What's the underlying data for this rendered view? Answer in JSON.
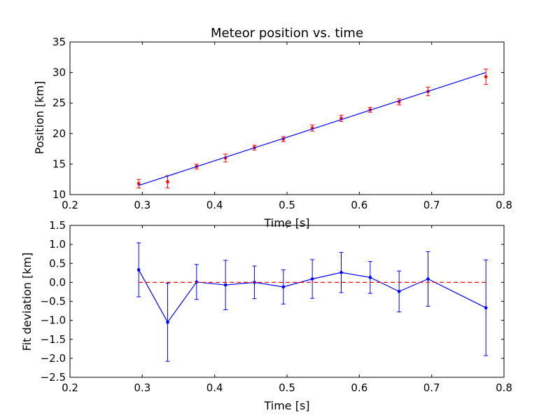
{
  "chart_data": [
    {
      "type": "scatter",
      "title": "Meteor position vs. time",
      "xlabel": "Time [s]",
      "ylabel": "Position [km]",
      "xlim": [
        0.2,
        0.8
      ],
      "ylim": [
        10,
        35
      ],
      "xticks": [
        0.2,
        0.3,
        0.4,
        0.5,
        0.6,
        0.7,
        0.8
      ],
      "xtick_labels": [
        "0.2",
        "0.3",
        "0.4",
        "0.5",
        "0.6",
        "0.7",
        "0.8"
      ],
      "yticks": [
        10,
        15,
        20,
        25,
        30,
        35
      ],
      "ytick_labels": [
        "10",
        "15",
        "20",
        "25",
        "30",
        "35"
      ],
      "grid": false,
      "series": [
        {
          "kind": "errorbar",
          "color": "#ff0000",
          "x": [
            0.295,
            0.335,
            0.375,
            0.415,
            0.455,
            0.495,
            0.535,
            0.575,
            0.615,
            0.655,
            0.695,
            0.775
          ],
          "y": [
            11.8,
            12.1,
            14.6,
            16.0,
            17.7,
            19.1,
            20.9,
            22.5,
            23.9,
            25.2,
            26.9,
            29.3
          ],
          "yerr": [
            0.7,
            1.0,
            0.4,
            0.65,
            0.4,
            0.4,
            0.5,
            0.5,
            0.4,
            0.5,
            0.7,
            1.25
          ]
        },
        {
          "kind": "line",
          "color": "#0000ff",
          "x": [
            0.295,
            0.775
          ],
          "y": [
            11.5,
            30.0
          ]
        }
      ]
    },
    {
      "type": "line",
      "title": "",
      "xlabel": "Time [s]",
      "ylabel": "Fit deviation [km]",
      "xlim": [
        0.2,
        0.8
      ],
      "ylim": [
        -2.5,
        1.5
      ],
      "xticks": [
        0.2,
        0.3,
        0.4,
        0.5,
        0.6,
        0.7,
        0.8
      ],
      "xtick_labels": [
        "0.2",
        "0.3",
        "0.4",
        "0.5",
        "0.6",
        "0.7",
        "0.8"
      ],
      "yticks": [
        -2.5,
        -2.0,
        -1.5,
        -1.0,
        -0.5,
        0.0,
        0.5,
        1.0,
        1.5
      ],
      "ytick_labels": [
        "−2.5",
        "−2.0",
        "−1.5",
        "−1.0",
        "−0.5",
        "0.0",
        "0.5",
        "1.0",
        "1.5"
      ],
      "grid": false,
      "series": [
        {
          "kind": "errorbar-line",
          "color": "#0000ff",
          "x": [
            0.295,
            0.335,
            0.375,
            0.415,
            0.455,
            0.495,
            0.535,
            0.575,
            0.615,
            0.655,
            0.695,
            0.775
          ],
          "y": [
            0.33,
            -1.05,
            0.01,
            -0.07,
            0.0,
            -0.12,
            0.09,
            0.26,
            0.13,
            -0.24,
            0.09,
            -0.67
          ],
          "yerr": [
            0.71,
            1.03,
            0.46,
            0.65,
            0.43,
            0.45,
            0.51,
            0.53,
            0.42,
            0.54,
            0.72,
            1.26
          ]
        },
        {
          "kind": "dashed-line",
          "color": "#ff0000",
          "x": [
            0.295,
            0.775
          ],
          "y": [
            0.0,
            0.0
          ]
        }
      ]
    }
  ]
}
